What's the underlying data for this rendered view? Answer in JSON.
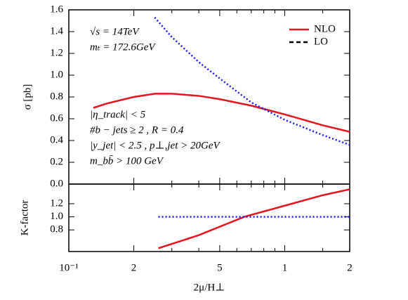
{
  "chart_data": [
    {
      "type": "line",
      "ylabel": "σ [pb]",
      "xlog": true,
      "xlim": [
        0.1,
        2
      ],
      "ylim": [
        0,
        1.6
      ],
      "yticks": [
        {
          "value": 0,
          "label": "0.0"
        },
        0.2,
        0.4,
        0.6,
        0.8,
        {
          "value": 1,
          "label": "1.0"
        },
        1.2,
        1.4,
        1.6
      ],
      "xticks": [
        0.1,
        0.2,
        0.5,
        1,
        2
      ],
      "xminor_ticks": [
        0.3,
        0.4,
        0.6,
        0.7,
        0.8,
        0.9,
        1.5
      ],
      "legend": "upper right",
      "annotations": [
        "√s = 14TeV",
        "mₜ = 172.6GeV",
        "|η_track| < 5",
        "#b − jets ≥ 2 , R = 0.4",
        "|y_jet| < 2.5 , p⊥,jet > 20GeV",
        "m_bb̄ > 100 GeV"
      ],
      "series": [
        {
          "name": "NLO",
          "color": "#e8141c",
          "style": "solid",
          "x": [
            0.13,
            0.15,
            0.2,
            0.25,
            0.3,
            0.4,
            0.5,
            0.7,
            1.0,
            1.5,
            2.0
          ],
          "values": [
            0.7,
            0.74,
            0.8,
            0.83,
            0.83,
            0.81,
            0.78,
            0.72,
            0.64,
            0.54,
            0.48
          ]
        },
        {
          "name": "LO",
          "color": "#1a1aee",
          "style": "dotted",
          "legend_color": "#000000",
          "legend_style": "dashed",
          "x": [
            0.25,
            0.3,
            0.4,
            0.5,
            0.7,
            1.0,
            1.5,
            2.0
          ],
          "values": [
            1.53,
            1.35,
            1.12,
            0.97,
            0.75,
            0.59,
            0.45,
            0.36
          ]
        }
      ]
    },
    {
      "type": "line",
      "ylabel": "K-factor",
      "xlabel": "2μ/H⊥",
      "xlog": true,
      "xlim": [
        0.1,
        2
      ],
      "ylim": [
        0.47,
        1.5
      ],
      "yticks": [
        0.8,
        {
          "value": 1,
          "label": "1.0"
        },
        1.2
      ],
      "xticks": [
        {
          "value": 0.1,
          "label": "10⁻¹"
        },
        {
          "value": 0.2,
          "label": "2"
        },
        {
          "value": 0.5,
          "label": "5"
        },
        1,
        {
          "value": 2,
          "label": "2"
        }
      ],
      "xminor_ticks": [
        0.3,
        0.4,
        0.6,
        0.7,
        0.8,
        0.9,
        1.5
      ],
      "series": [
        {
          "color": "#e8141c",
          "style": "solid",
          "x": [
            0.26,
            0.4,
            0.65,
            1.0,
            1.5,
            2.0
          ],
          "values": [
            0.52,
            0.72,
            1.0,
            1.17,
            1.33,
            1.42
          ]
        },
        {
          "color": "#1a1aee",
          "style": "dotted",
          "x": [
            0.26,
            2.0
          ],
          "values": [
            1.0,
            1.0
          ]
        }
      ]
    }
  ]
}
